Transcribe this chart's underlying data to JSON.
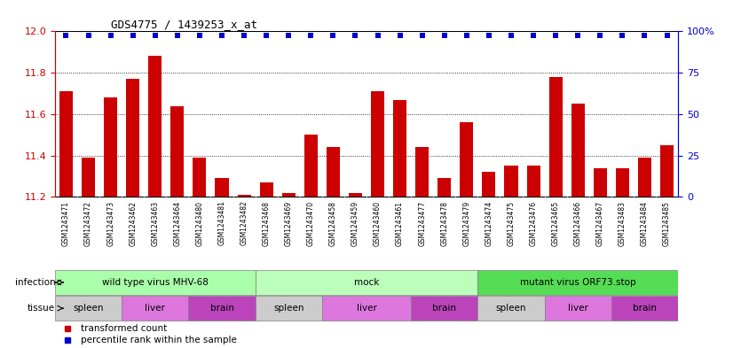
{
  "title": "GDS4775 / 1439253_x_at",
  "samples": [
    "GSM1243471",
    "GSM1243472",
    "GSM1243473",
    "GSM1243462",
    "GSM1243463",
    "GSM1243464",
    "GSM1243480",
    "GSM1243481",
    "GSM1243482",
    "GSM1243468",
    "GSM1243469",
    "GSM1243470",
    "GSM1243458",
    "GSM1243459",
    "GSM1243460",
    "GSM1243461",
    "GSM1243477",
    "GSM1243478",
    "GSM1243479",
    "GSM1243474",
    "GSM1243475",
    "GSM1243476",
    "GSM1243465",
    "GSM1243466",
    "GSM1243467",
    "GSM1243483",
    "GSM1243484",
    "GSM1243485"
  ],
  "bar_values": [
    11.71,
    11.39,
    11.68,
    11.77,
    11.88,
    11.64,
    11.39,
    11.29,
    11.21,
    11.27,
    11.22,
    11.5,
    11.44,
    11.22,
    11.71,
    11.67,
    11.44,
    11.29,
    11.56,
    11.32,
    11.35,
    11.35,
    11.78,
    11.65,
    11.34,
    11.34,
    11.39,
    11.45
  ],
  "ylim_left": [
    11.2,
    12.0
  ],
  "ylim_right": [
    0,
    100
  ],
  "yticks_left": [
    11.2,
    11.4,
    11.6,
    11.8,
    12.0
  ],
  "yticks_right": [
    0,
    25,
    50,
    75,
    100
  ],
  "bar_color": "#cc0000",
  "dot_color": "#0000cc",
  "bg_color": "#ffffff",
  "label_bg_color": "#d8d8d8",
  "infection_groups": [
    {
      "label": "wild type virus MHV-68",
      "start": 0,
      "end": 9,
      "color": "#aaffaa"
    },
    {
      "label": "mock",
      "start": 9,
      "end": 19,
      "color": "#bbffbb"
    },
    {
      "label": "mutant virus ORF73.stop",
      "start": 19,
      "end": 28,
      "color": "#55dd55"
    }
  ],
  "tissue_groups": [
    {
      "label": "spleen",
      "start": 0,
      "end": 3,
      "color": "#cccccc"
    },
    {
      "label": "liver",
      "start": 3,
      "end": 6,
      "color": "#dd77dd"
    },
    {
      "label": "brain",
      "start": 6,
      "end": 9,
      "color": "#bb44bb"
    },
    {
      "label": "spleen",
      "start": 9,
      "end": 12,
      "color": "#cccccc"
    },
    {
      "label": "liver",
      "start": 12,
      "end": 16,
      "color": "#dd77dd"
    },
    {
      "label": "brain",
      "start": 16,
      "end": 19,
      "color": "#bb44bb"
    },
    {
      "label": "spleen",
      "start": 19,
      "end": 22,
      "color": "#cccccc"
    },
    {
      "label": "liver",
      "start": 22,
      "end": 25,
      "color": "#dd77dd"
    },
    {
      "label": "brain",
      "start": 25,
      "end": 28,
      "color": "#bb44bb"
    }
  ]
}
